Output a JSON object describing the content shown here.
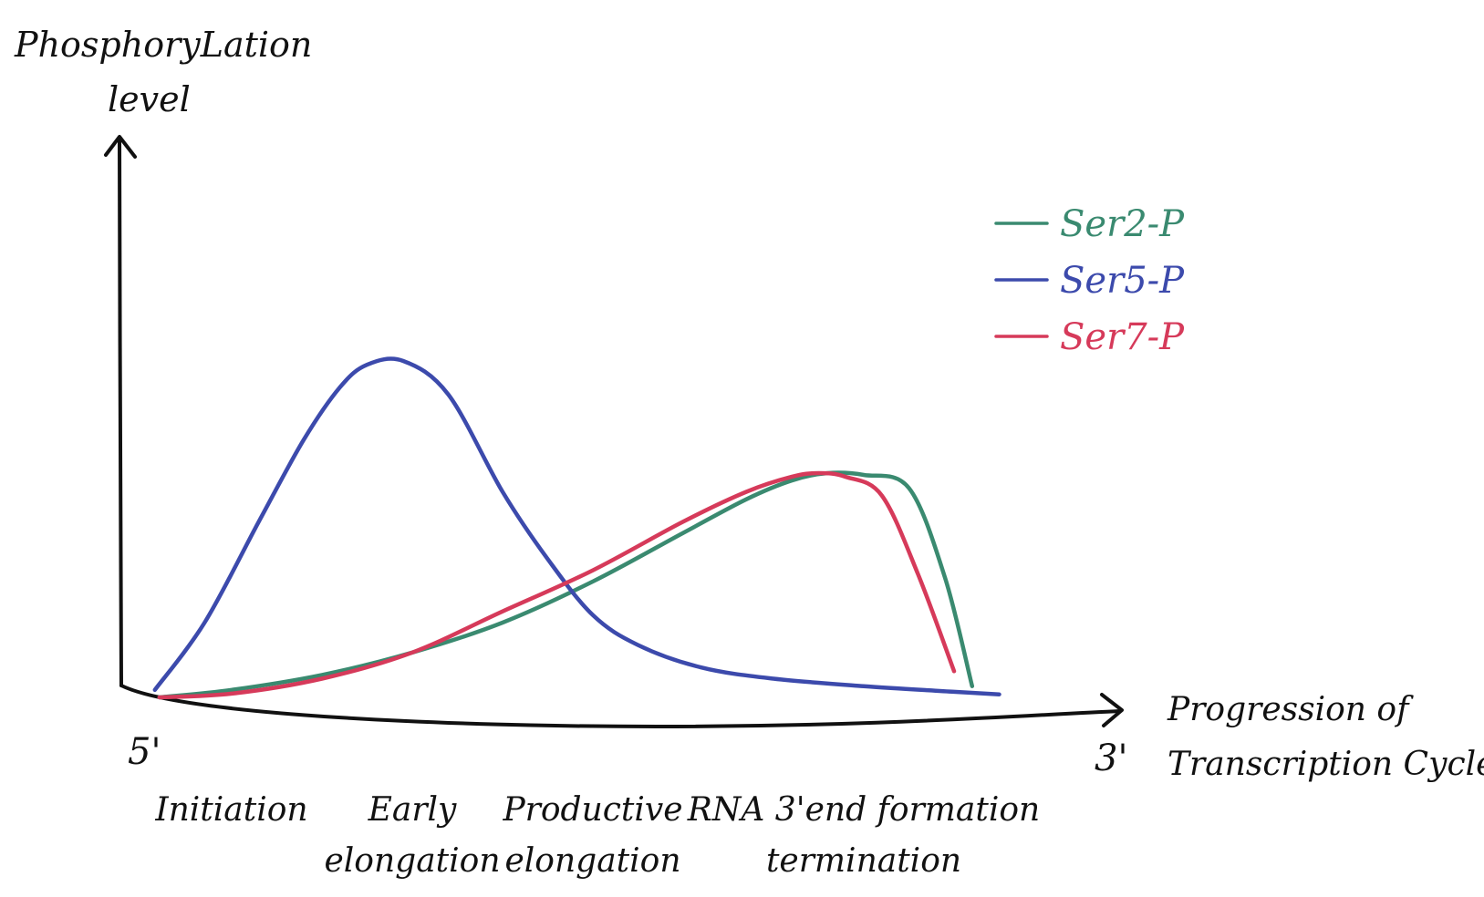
{
  "chart_data": {
    "type": "line",
    "title": "",
    "ylabel_lines": [
      "PhosphoryLation",
      "level"
    ],
    "xlabel_lines": [
      "Progression of",
      "Transcription Cycle"
    ],
    "x_start_label": "5'",
    "x_end_label": "3'",
    "x_range": [
      0,
      10
    ],
    "y_range": [
      0,
      10
    ],
    "stages": [
      {
        "lines": [
          "Initiation"
        ],
        "x": 1.0
      },
      {
        "lines": [
          "Early",
          "elongation"
        ],
        "x": 3.0
      },
      {
        "lines": [
          "Productive",
          "elongation"
        ],
        "x": 5.0
      },
      {
        "lines": [
          "RNA 3'end formation",
          "termination"
        ],
        "x": 8.0
      }
    ],
    "legend_position": "top-right",
    "series": [
      {
        "name": "Ser2-P",
        "color": "#3a8a70",
        "x": [
          0.2,
          1.0,
          2.0,
          3.0,
          4.0,
          5.0,
          6.0,
          6.7,
          7.2,
          7.6,
          8.0,
          8.5,
          8.9,
          9.2
        ],
        "y": [
          0.0,
          0.2,
          0.6,
          1.2,
          2.0,
          3.1,
          4.4,
          5.3,
          5.8,
          6.0,
          5.95,
          5.6,
          3.2,
          0.3
        ]
      },
      {
        "name": "Ser5-P",
        "color": "#3c4aac",
        "x": [
          0.15,
          0.7,
          1.3,
          1.8,
          2.2,
          2.5,
          2.9,
          3.4,
          4.0,
          4.5,
          5.0,
          5.5,
          6.2,
          7.0,
          8.0,
          9.0,
          9.5
        ],
        "y": [
          0.2,
          2.0,
          4.7,
          6.9,
          8.3,
          8.9,
          9.0,
          8.1,
          5.5,
          3.7,
          2.2,
          1.4,
          0.8,
          0.5,
          0.3,
          0.15,
          0.08
        ]
      },
      {
        "name": "Ser7-P",
        "color": "#d63a5a",
        "x": [
          0.2,
          1.0,
          2.0,
          3.0,
          4.0,
          5.0,
          6.0,
          6.7,
          7.2,
          7.5,
          7.8,
          8.2,
          8.6,
          9.0
        ],
        "y": [
          0.0,
          0.1,
          0.5,
          1.2,
          2.3,
          3.4,
          4.7,
          5.5,
          5.9,
          6.0,
          5.9,
          5.4,
          3.3,
          0.7
        ]
      }
    ]
  }
}
